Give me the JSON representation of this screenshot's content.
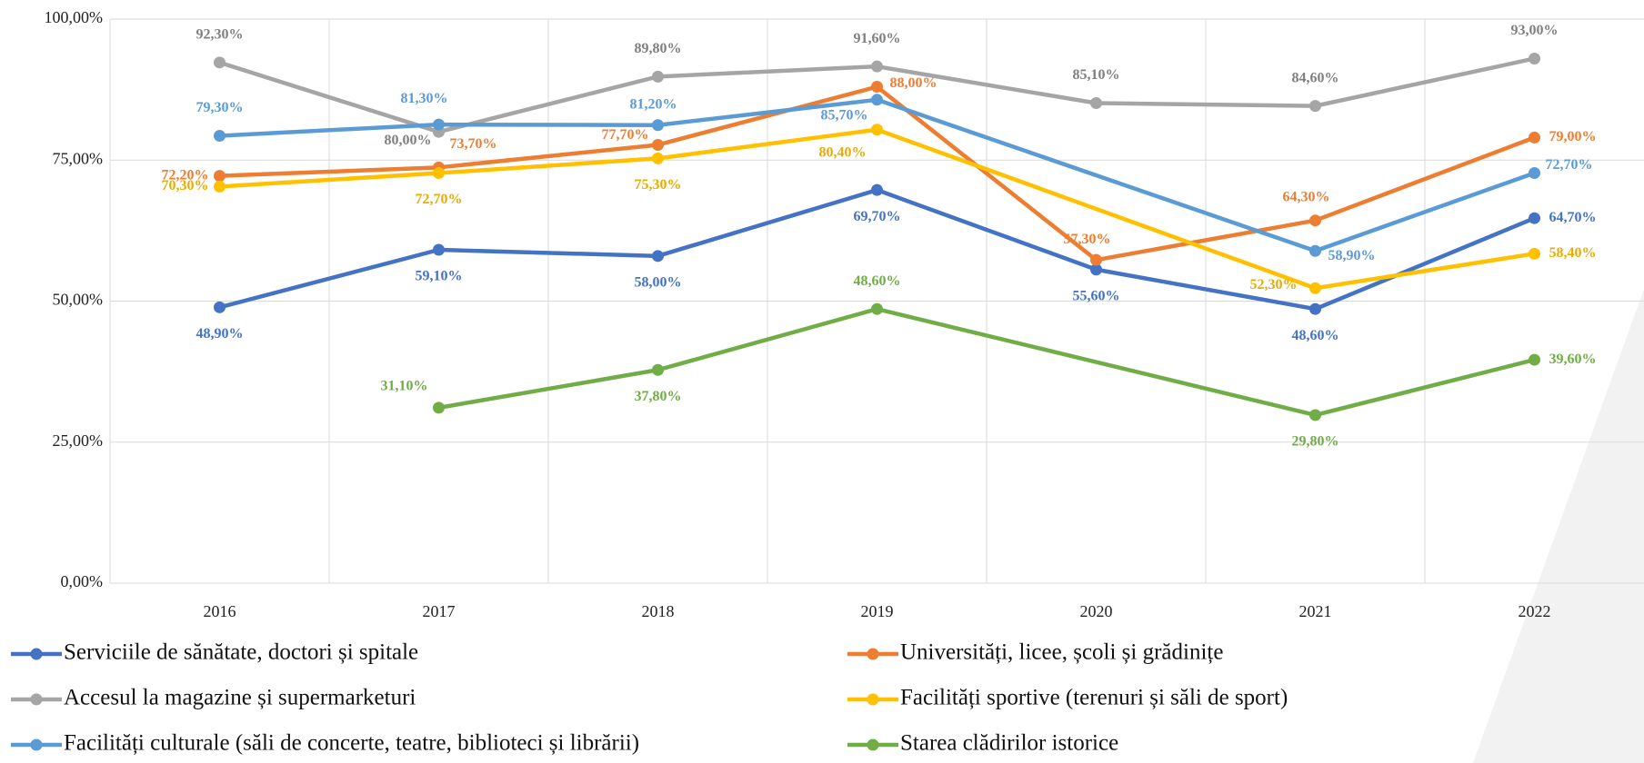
{
  "chart_data": {
    "type": "line",
    "categories": [
      "2016",
      "2017",
      "2018",
      "2019",
      "2020",
      "2021",
      "2022"
    ],
    "series": [
      {
        "name": "Serviciile de sănătate, doctori și spitale",
        "color": "#4472c4",
        "values": [
          48.9,
          59.1,
          58.0,
          69.7,
          55.6,
          48.6,
          64.7
        ],
        "value_labels": [
          "48,90%",
          "59,10%",
          "58,00%",
          "69,70%",
          "55,60%",
          "48,60%",
          "64,70%"
        ]
      },
      {
        "name": "Universități, licee, școli și grădinițe",
        "color": "#ed7d31",
        "values": [
          72.2,
          73.7,
          77.7,
          88.0,
          57.3,
          64.3,
          79.0
        ],
        "value_labels": [
          "72,20%",
          "73,70%",
          "77,70%",
          "88,00%",
          "57,30%",
          "64,30%",
          "79,00%"
        ]
      },
      {
        "name": "Accesul la magazine și supermarketuri",
        "color": "#a5a5a5",
        "values": [
          92.3,
          80.0,
          89.8,
          91.6,
          85.1,
          84.6,
          93.0
        ],
        "value_labels": [
          "92,30%",
          "80,00%",
          "89,80%",
          "91,60%",
          "85,10%",
          "84,60%",
          "93,00%"
        ]
      },
      {
        "name": "Facilități sportive (terenuri și săli de sport)",
        "color": "#ffc000",
        "values": [
          70.3,
          72.7,
          75.3,
          80.4,
          null,
          52.3,
          58.4
        ],
        "value_labels": [
          "70,30%",
          "72,70%",
          "75,30%",
          "80,40%",
          null,
          "52,30%",
          "58,40%"
        ]
      },
      {
        "name": "Facilități culturale (săli de concerte, teatre, biblioteci și librării)",
        "color": "#5b9bd5",
        "values": [
          79.3,
          81.3,
          81.2,
          85.7,
          null,
          58.9,
          72.7
        ],
        "value_labels": [
          "79,30%",
          "81,30%",
          "81,20%",
          "85,70%",
          null,
          "58,90%",
          "72,70%"
        ]
      },
      {
        "name": "Starea clădirilor istorice",
        "color": "#70ad47",
        "values": [
          null,
          31.1,
          37.8,
          48.6,
          null,
          29.8,
          39.6
        ],
        "value_labels": [
          null,
          "31,10%",
          "37,80%",
          "48,60%",
          null,
          "29,80%",
          "39,60%"
        ]
      }
    ],
    "ylim": [
      0,
      100
    ],
    "yticks": [
      {
        "value": 0,
        "label": "0,00%"
      },
      {
        "value": 25,
        "label": "25,00%"
      },
      {
        "value": 50,
        "label": "50,00%"
      },
      {
        "value": 75,
        "label": "75,00%"
      },
      {
        "value": 100,
        "label": "100,00%"
      }
    ],
    "grid": true,
    "span_gaps": true,
    "legend": "bottom"
  }
}
